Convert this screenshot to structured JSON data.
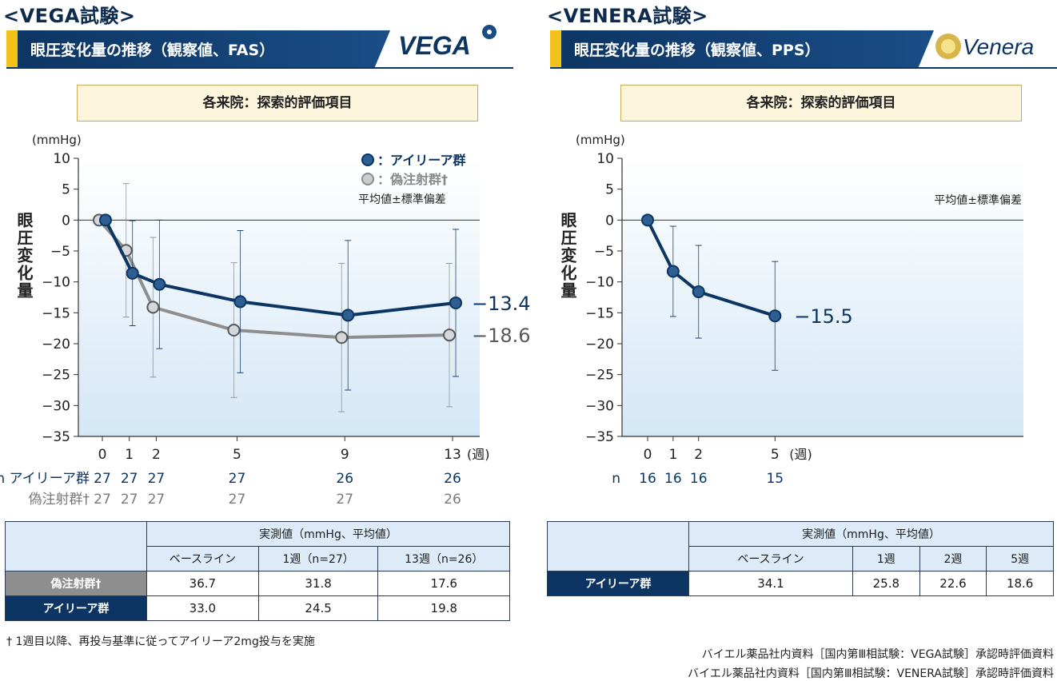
{
  "left": {
    "trial_title": "<VEGA試験>",
    "banner": "眼圧変化量の推移（観察値、FAS）",
    "logo_text": "VEGA",
    "note": "各来院：探索的評価項目",
    "unit": "(mmHg)",
    "ylabel": "眼圧変化量",
    "legend": [
      "●：アイリーア群",
      "●：偽注射群†"
    ],
    "legend_note": "平均値±標準偏差",
    "week_label": "(週)",
    "n_rows": [
      {
        "label": "n アイリーア群",
        "values": [
          "27",
          "27",
          "27",
          "27",
          "26",
          "26"
        ]
      },
      {
        "label": "偽注射群†",
        "values": [
          "27",
          "27",
          "27",
          "27",
          "27",
          "26"
        ]
      }
    ],
    "table": {
      "group_header": "実測値（mmHg、平均値）",
      "columns": [
        "ベースライン",
        "1週（n=27）",
        "13週（n=26）"
      ],
      "rows": [
        {
          "label": "偽注射群†",
          "values": [
            "36.7",
            "31.8",
            "17.6"
          ]
        },
        {
          "label": "アイリーア群",
          "values": [
            "33.0",
            "24.5",
            "19.8"
          ]
        }
      ]
    },
    "footnote": "† 1週目以降、再投与基準に従ってアイリーア2mg投与を実施"
  },
  "right": {
    "trial_title": "<VENERA試験>",
    "banner": "眼圧変化量の推移（観察値、PPS）",
    "logo_text": "Venera",
    "note": "各来院：探索的評価項目",
    "unit": "(mmHg)",
    "ylabel": "眼圧変化量",
    "legend_note": "平均値±標準偏差",
    "week_label": "(週)",
    "n_rows": [
      {
        "label": "n",
        "values": [
          "16",
          "16",
          "16",
          "15"
        ]
      }
    ],
    "table": {
      "group_header": "実測値（mmHg、平均値）",
      "columns": [
        "ベースライン",
        "1週",
        "2週",
        "5週"
      ],
      "rows": [
        {
          "label": "アイリーア群",
          "values": [
            "34.1",
            "25.8",
            "22.6",
            "18.6"
          ]
        }
      ]
    }
  },
  "sources": [
    "バイエル薬品社内資料［国内第Ⅲ相試験：VEGA試験］承認時評価資料",
    "バイエル薬品社内資料［国内第Ⅲ相試験：VENERA試験］承認時評価資料"
  ],
  "colors": {
    "blue": "#0c3563",
    "gray": "#8e8e8e",
    "plot_bg_top": "#ffffff",
    "plot_bg_bottom": "#d4e7f6"
  },
  "chart_data": [
    {
      "type": "line",
      "ylabel": "眼圧変化量",
      "ylim": [
        -35,
        10
      ],
      "yticks": [
        10,
        5,
        0,
        -5,
        -10,
        -15,
        -20,
        -25,
        -30,
        -35
      ],
      "x_ticks": [
        0,
        1,
        2,
        5,
        9,
        13
      ],
      "xmax": 13,
      "series": [
        {
          "name": "アイリーア群",
          "color": "#0c3563",
          "x": [
            0,
            1,
            2,
            5,
            9,
            13
          ],
          "y": [
            0,
            -8.6,
            -10.4,
            -13.2,
            -15.4,
            -13.4
          ],
          "err": [
            0,
            8.5,
            10.4,
            11.5,
            12.1,
            11.9
          ],
          "end_label": "−13.4"
        },
        {
          "name": "偽注射群†",
          "color": "#8e8e8e",
          "x": [
            0,
            1,
            2,
            5,
            9,
            13
          ],
          "y": [
            0,
            -4.9,
            -14.1,
            -17.8,
            -19.0,
            -18.6
          ],
          "err": [
            0,
            10.8,
            11.3,
            10.9,
            12.0,
            11.6
          ],
          "end_label": "−18.6"
        }
      ]
    },
    {
      "type": "line",
      "ylabel": "眼圧変化量",
      "ylim": [
        -35,
        10
      ],
      "yticks": [
        10,
        5,
        0,
        -5,
        -10,
        -15,
        -20,
        -25,
        -30,
        -35
      ],
      "x_ticks": [
        0,
        1,
        2,
        5
      ],
      "xmax": 14,
      "series": [
        {
          "name": "アイリーア群",
          "color": "#0c3563",
          "x": [
            0,
            1,
            2,
            5
          ],
          "y": [
            0,
            -8.3,
            -11.6,
            -15.5
          ],
          "err": [
            0,
            7.3,
            7.5,
            8.8
          ],
          "end_label": "−15.5"
        }
      ]
    }
  ]
}
